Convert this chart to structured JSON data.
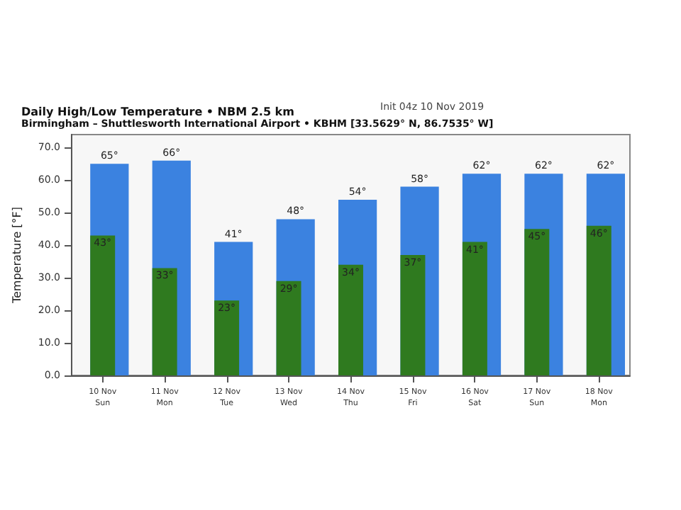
{
  "chart_data": {
    "type": "bar",
    "title": "Daily High/Low Temperature • NBM 2.5 km",
    "subtitle": "Birmingham – Shuttlesworth International Airport • KBHM [33.5629° N, 86.7535° W]",
    "annotations": [
      "Init 04z 10 Nov 2019"
    ],
    "ylabel": "Temperature [°F]",
    "categories": [
      "10 Nov\nSun",
      "11 Nov\nMon",
      "12 Nov\nTue",
      "13 Nov\nWed",
      "14 Nov\nThu",
      "15 Nov\nFri",
      "16 Nov\nSat",
      "17 Nov\nSun",
      "18 Nov\nMon"
    ],
    "series": [
      {
        "color": "#3b82e0",
        "values": [
          65,
          66,
          41,
          48,
          54,
          58,
          62,
          62,
          62
        ],
        "value_labels": [
          "65°",
          "66°",
          "41°",
          "48°",
          "54°",
          "58°",
          "62°",
          "62°",
          "62°"
        ]
      },
      {
        "color": "#2f7a1f",
        "values": [
          43,
          33,
          23,
          29,
          34,
          37,
          41,
          45,
          46
        ],
        "value_labels": [
          "43°",
          "33°",
          "23°",
          "29°",
          "34°",
          "37°",
          "41°",
          "45°",
          "46°"
        ]
      }
    ],
    "ylim": [
      0,
      74
    ],
    "yticks": [
      {
        "value": 0,
        "label": "0.0"
      },
      {
        "value": 10,
        "label": "10.0"
      },
      {
        "value": 20,
        "label": "20.0"
      },
      {
        "value": 30,
        "label": "30.0"
      },
      {
        "value": 40,
        "label": "40.0"
      },
      {
        "value": 50,
        "label": "50.0"
      },
      {
        "value": 60,
        "label": "60.0"
      },
      {
        "value": 70,
        "label": "70.0"
      }
    ],
    "grid": false
  }
}
